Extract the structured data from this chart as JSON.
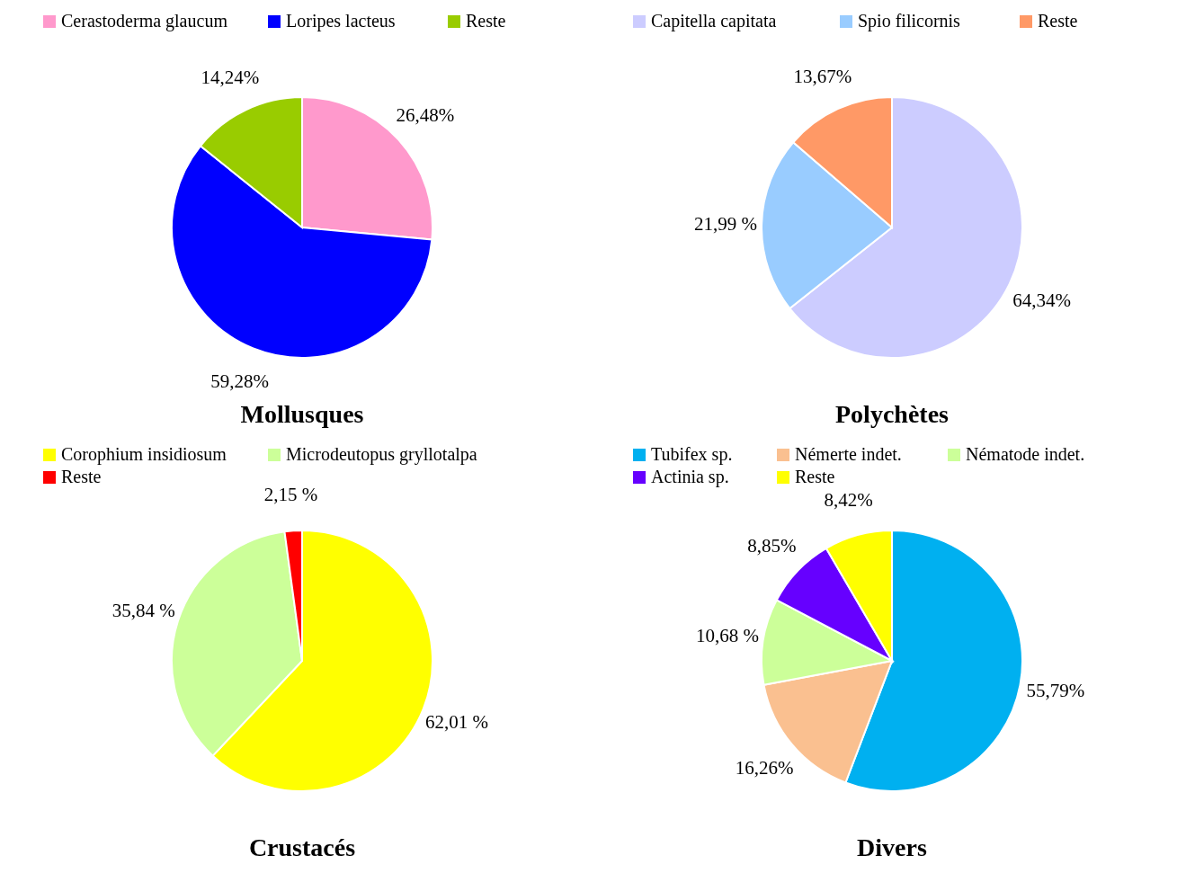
{
  "chart_data": [
    {
      "type": "pie",
      "title": "Mollusques",
      "legend": "top",
      "categories": [
        "Cerastoderma glaucum",
        "Loripes lacteus",
        "Reste"
      ],
      "values": [
        26.48,
        59.28,
        14.24
      ],
      "colors": [
        "#ff99cc",
        "#0000ff",
        "#99cc00"
      ],
      "value_labels": [
        "26,48%",
        "59,28%",
        "14,24%"
      ]
    },
    {
      "type": "pie",
      "title": "Polychètes",
      "legend": "top",
      "categories": [
        "Capitella capitata",
        "Spio filicornis",
        "Reste"
      ],
      "values": [
        64.34,
        21.99,
        13.67
      ],
      "colors": [
        "#ccccff",
        "#99ccff",
        "#ff9966"
      ],
      "value_labels": [
        "64,34%",
        "21,99 %",
        "13,67%"
      ]
    },
    {
      "type": "pie",
      "title": "Crustacés",
      "legend": "top",
      "categories": [
        "Corophium insidiosum",
        "Microdeutopus gryllotalpa",
        "Reste"
      ],
      "values": [
        62.01,
        35.84,
        2.15
      ],
      "colors": [
        "#ffff00",
        "#ccff99",
        "#ff0000"
      ],
      "value_labels": [
        "62,01 %",
        "35,84 %",
        "2,15 %"
      ]
    },
    {
      "type": "pie",
      "title": "Divers",
      "legend": "top",
      "categories": [
        "Tubifex sp.",
        "Némerte indet.",
        "Nématode indet.",
        "Actinia sp.",
        "Reste"
      ],
      "values": [
        55.79,
        16.26,
        10.68,
        8.85,
        8.42
      ],
      "colors": [
        "#00b0f0",
        "#fac090",
        "#ccff99",
        "#6600ff",
        "#ffff00"
      ],
      "value_labels": [
        "55,79%",
        "16,26%",
        "10,68 %",
        "8,85%",
        "8,42%"
      ]
    }
  ]
}
